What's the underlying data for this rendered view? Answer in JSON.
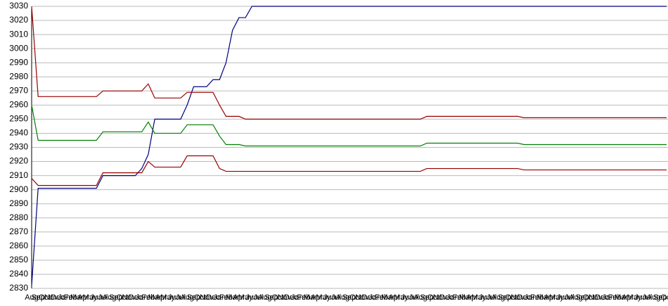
{
  "chart_data": {
    "type": "line",
    "categories": [
      "Aug",
      "Sep",
      "Oct",
      "Nov",
      "Dec",
      "Jan",
      "Feb",
      "Mar",
      "Apr",
      "May",
      "Jun",
      "Jul",
      "Aug",
      "Sep",
      "Oct",
      "Nov",
      "Dec",
      "Jan",
      "Feb",
      "Mar",
      "Apr",
      "May",
      "Jun",
      "Jul",
      "Aug",
      "Sep",
      "Oct",
      "Nov",
      "Dec",
      "Jan",
      "Feb",
      "Mar",
      "Apr",
      "May",
      "Jun",
      "Jul",
      "Aug",
      "Sep",
      "Oct",
      "Nov",
      "Dec",
      "Jan",
      "Feb",
      "Mar",
      "Apr",
      "May",
      "Jun",
      "Jul",
      "Aug",
      "Sep",
      "Oct",
      "Nov",
      "Dec",
      "Jan",
      "Feb",
      "Mar",
      "Apr",
      "May",
      "Jun",
      "Jul",
      "Aug",
      "Sep",
      "Oct",
      "Nov",
      "Dec",
      "Jan",
      "Feb",
      "Mar",
      "Apr",
      "May",
      "Jun",
      "Jul",
      "Aug",
      "Sep",
      "Oct",
      "Nov",
      "Dec",
      "Jan",
      "Feb",
      "Mar",
      "Apr",
      "May",
      "Jun",
      "Jul",
      "Aug",
      "Sep",
      "Oct",
      "Nov",
      "Dec",
      "Jan",
      "Feb",
      "Mar",
      "Apr",
      "May",
      "Jun",
      "Jul",
      "Aug",
      "Sep",
      "Oct"
    ],
    "series": [
      {
        "color": "#000080",
        "values": [
          2832,
          2901,
          2901,
          2901,
          2901,
          2901,
          2901,
          2901,
          2901,
          2901,
          2901,
          2910,
          2910,
          2910,
          2910,
          2910,
          2910,
          2915,
          2925,
          2950,
          2950,
          2950,
          2950,
          2950,
          2960,
          2973,
          2973,
          2973,
          2978,
          2978,
          2990,
          3013,
          3022,
          3022,
          3030,
          3030,
          3030,
          3030,
          3030,
          3030,
          3030,
          3030,
          3030,
          3030,
          3030,
          3030,
          3030,
          3030,
          3030,
          3030,
          3030,
          3030,
          3030,
          3030,
          3030,
          3030,
          3030,
          3030,
          3030,
          3030,
          3030,
          3030,
          3030,
          3030,
          3030,
          3030,
          3030,
          3030,
          3030,
          3030,
          3030,
          3030,
          3030,
          3030,
          3030,
          3030,
          3030,
          3030,
          3030,
          3030,
          3030,
          3030,
          3030,
          3030,
          3030,
          3030,
          3030,
          3030,
          3030,
          3030,
          3030,
          3030,
          3030,
          3030,
          3030,
          3030,
          3030,
          3030,
          3030
        ]
      },
      {
        "color": "#990000",
        "values": [
          3030,
          2966,
          2966,
          2966,
          2966,
          2966,
          2966,
          2966,
          2966,
          2966,
          2966,
          2970,
          2970,
          2970,
          2970,
          2970,
          2970,
          2970,
          2975,
          2965,
          2965,
          2965,
          2965,
          2965,
          2969,
          2969,
          2969,
          2969,
          2969,
          2960,
          2952,
          2952,
          2952,
          2950,
          2950,
          2950,
          2950,
          2950,
          2950,
          2950,
          2950,
          2950,
          2950,
          2950,
          2950,
          2950,
          2950,
          2950,
          2950,
          2950,
          2950,
          2950,
          2950,
          2950,
          2950,
          2950,
          2950,
          2950,
          2950,
          2950,
          2950,
          2952,
          2952,
          2952,
          2952,
          2952,
          2952,
          2952,
          2952,
          2952,
          2952,
          2952,
          2952,
          2952,
          2952,
          2952,
          2951,
          2951,
          2951,
          2951,
          2951,
          2951,
          2951,
          2951,
          2951,
          2951,
          2951,
          2951,
          2951,
          2951,
          2951,
          2951,
          2951,
          2951,
          2951,
          2951,
          2951,
          2951,
          2951
        ]
      },
      {
        "color": "#008000",
        "values": [
          2960,
          2935,
          2935,
          2935,
          2935,
          2935,
          2935,
          2935,
          2935,
          2935,
          2935,
          2941,
          2941,
          2941,
          2941,
          2941,
          2941,
          2941,
          2948,
          2940,
          2940,
          2940,
          2940,
          2940,
          2946,
          2946,
          2946,
          2946,
          2946,
          2938,
          2932,
          2932,
          2932,
          2931,
          2931,
          2931,
          2931,
          2931,
          2931,
          2931,
          2931,
          2931,
          2931,
          2931,
          2931,
          2931,
          2931,
          2931,
          2931,
          2931,
          2931,
          2931,
          2931,
          2931,
          2931,
          2931,
          2931,
          2931,
          2931,
          2931,
          2931,
          2933,
          2933,
          2933,
          2933,
          2933,
          2933,
          2933,
          2933,
          2933,
          2933,
          2933,
          2933,
          2933,
          2933,
          2933,
          2932,
          2932,
          2932,
          2932,
          2932,
          2932,
          2932,
          2932,
          2932,
          2932,
          2932,
          2932,
          2932,
          2932,
          2932,
          2932,
          2932,
          2932,
          2932,
          2932,
          2932,
          2932,
          2932
        ]
      },
      {
        "color": "#990000",
        "values": [
          2908,
          2903,
          2903,
          2903,
          2903,
          2903,
          2903,
          2903,
          2903,
          2903,
          2903,
          2912,
          2912,
          2912,
          2912,
          2912,
          2912,
          2912,
          2920,
          2916,
          2916,
          2916,
          2916,
          2916,
          2924,
          2924,
          2924,
          2924,
          2924,
          2915,
          2913,
          2913,
          2913,
          2913,
          2913,
          2913,
          2913,
          2913,
          2913,
          2913,
          2913,
          2913,
          2913,
          2913,
          2913,
          2913,
          2913,
          2913,
          2913,
          2913,
          2913,
          2913,
          2913,
          2913,
          2913,
          2913,
          2913,
          2913,
          2913,
          2913,
          2913,
          2915,
          2915,
          2915,
          2915,
          2915,
          2915,
          2915,
          2915,
          2915,
          2915,
          2915,
          2915,
          2915,
          2915,
          2915,
          2914,
          2914,
          2914,
          2914,
          2914,
          2914,
          2914,
          2914,
          2914,
          2914,
          2914,
          2914,
          2914,
          2914,
          2914,
          2914,
          2914,
          2914,
          2914,
          2914,
          2914,
          2914,
          2914
        ]
      }
    ],
    "ylim": [
      2830,
      3030
    ],
    "yticks": [
      2830,
      2840,
      2850,
      2860,
      2870,
      2880,
      2890,
      2900,
      2910,
      2920,
      2930,
      2940,
      2950,
      2960,
      2970,
      2980,
      2990,
      3000,
      3010,
      3020,
      3030
    ],
    "grid": true
  }
}
